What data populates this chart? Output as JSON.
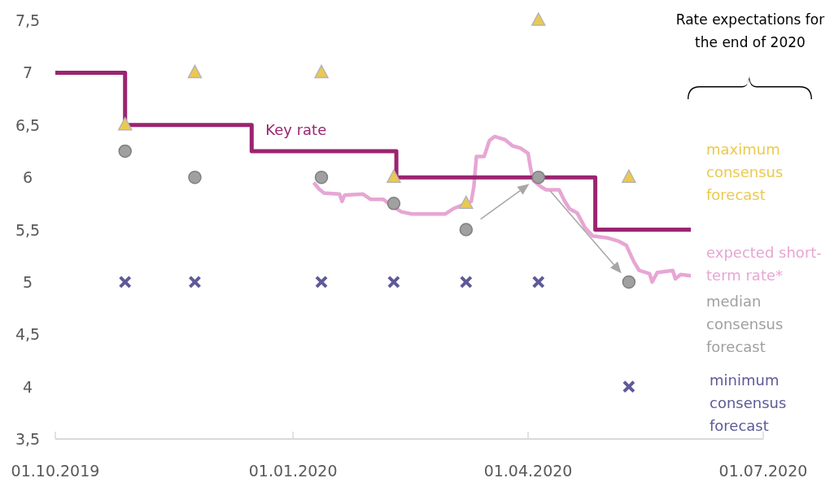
{
  "chart_data": {
    "type": "line",
    "xlim": [
      "2019-10-01",
      "2020-07-01"
    ],
    "xticks": [
      {
        "value": "2019-10-01",
        "label": "01.10.2019"
      },
      {
        "value": "2020-01-01",
        "label": "01.01.2020"
      },
      {
        "value": "2020-04-01",
        "label": "01.04.2020"
      },
      {
        "value": "2020-07-01",
        "label": "01.07.2020"
      }
    ],
    "ylim": [
      3.5,
      7.5
    ],
    "yticks": [
      {
        "value": 3.5,
        "label": "3,5"
      },
      {
        "value": 4,
        "label": "4"
      },
      {
        "value": 4.5,
        "label": "4,5"
      },
      {
        "value": 5,
        "label": "5"
      },
      {
        "value": 5.5,
        "label": "5,5"
      },
      {
        "value": 6,
        "label": "6"
      },
      {
        "value": 6.5,
        "label": "6,5"
      },
      {
        "value": 7,
        "label": "7"
      },
      {
        "value": 7.5,
        "label": "7,5"
      }
    ],
    "grid": false,
    "legend": false,
    "annotations": [
      "Rate expectations for the end of 2020"
    ],
    "series": [
      {
        "name": "expected short-term rate*",
        "type": "line",
        "color": "#e7a6d4",
        "x": [
          "2020-01-09",
          "2020-01-11",
          "2020-01-13",
          "2020-01-19",
          "2020-01-20",
          "2020-01-21",
          "2020-01-28",
          "2020-01-31",
          "2020-02-05",
          "2020-02-08",
          "2020-02-12",
          "2020-02-16",
          "2020-02-29",
          "2020-03-03",
          "2020-03-07",
          "2020-03-10",
          "2020-03-11",
          "2020-03-12",
          "2020-03-15",
          "2020-03-17",
          "2020-03-19",
          "2020-03-23",
          "2020-03-26",
          "2020-03-29",
          "2020-04-01",
          "2020-04-02",
          "2020-04-03",
          "2020-04-06",
          "2020-04-08",
          "2020-04-13",
          "2020-04-15",
          "2020-04-17",
          "2020-04-20",
          "2020-04-23",
          "2020-04-26",
          "2020-05-02",
          "2020-05-06",
          "2020-05-09",
          "2020-05-12",
          "2020-05-14",
          "2020-05-18",
          "2020-05-19",
          "2020-05-21",
          "2020-05-27",
          "2020-05-28",
          "2020-05-30",
          "2020-06-03"
        ],
        "values": [
          5.95,
          5.89,
          5.85,
          5.84,
          5.77,
          5.83,
          5.84,
          5.79,
          5.79,
          5.73,
          5.67,
          5.65,
          5.65,
          5.7,
          5.74,
          5.77,
          5.91,
          6.2,
          6.2,
          6.35,
          6.39,
          6.36,
          6.3,
          6.28,
          6.23,
          6.08,
          5.97,
          5.91,
          5.88,
          5.88,
          5.78,
          5.7,
          5.66,
          5.52,
          5.44,
          5.42,
          5.39,
          5.35,
          5.19,
          5.11,
          5.08,
          5.0,
          5.09,
          5.11,
          5.03,
          5.07,
          5.06
        ]
      },
      {
        "name": "Key rate",
        "type": "step",
        "color": "#9b2470",
        "x": [
          "2019-10-01",
          "2019-10-28",
          "2019-12-16",
          "2020-02-10",
          "2020-04-27",
          "2020-06-03"
        ],
        "values": [
          7,
          6.5,
          6.25,
          6,
          5.5,
          5.5
        ]
      },
      {
        "name": "maximum consensus forecast",
        "type": "scatter",
        "color": "#ebc94f",
        "marker": "triangle",
        "x": [
          "2019-10-28",
          "2019-11-24",
          "2020-01-12",
          "2020-02-09",
          "2020-03-08",
          "2020-04-05",
          "2020-05-10"
        ],
        "values": [
          6.5,
          7,
          7,
          6,
          5.75,
          7.5,
          6
        ]
      },
      {
        "name": "median consensus forecast",
        "type": "scatter",
        "color": "#a0a0a0",
        "marker": "circle",
        "x": [
          "2019-10-28",
          "2019-11-24",
          "2020-01-12",
          "2020-02-09",
          "2020-03-08",
          "2020-04-05",
          "2020-05-10"
        ],
        "values": [
          6.25,
          6,
          6,
          5.75,
          5.5,
          6,
          5
        ]
      },
      {
        "name": "minimum consensus forecast",
        "type": "scatter",
        "color": "#5e5a98",
        "marker": "cross",
        "x": [
          "2019-10-28",
          "2019-11-24",
          "2020-01-12",
          "2020-02-09",
          "2020-03-08",
          "2020-04-05",
          "2020-05-10"
        ],
        "values": [
          5,
          5,
          5,
          5,
          5,
          5,
          4
        ]
      }
    ]
  }
}
